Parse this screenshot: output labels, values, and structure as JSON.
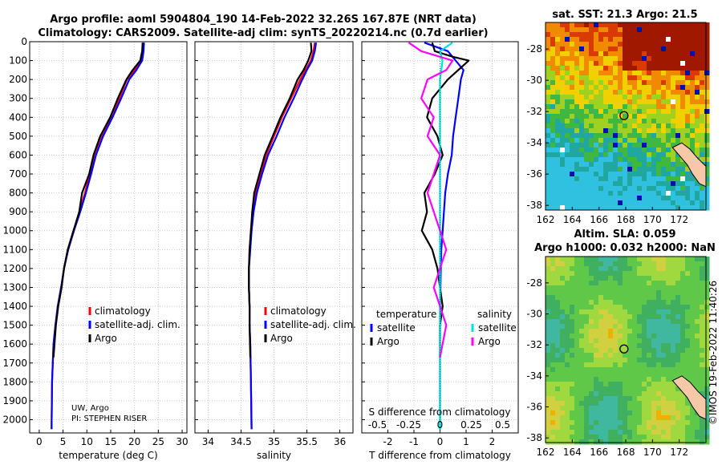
{
  "header": {
    "title_line1": "Argo profile: aoml 5904804_190 14-Feb-2022 32.26S 167.87E (NRT data)",
    "title_line2": "Climatology: CARS2009. Satellite-adj clim: synTS_20220214.nc (0.7d earlier)"
  },
  "colors": {
    "climatology": "#ff0000",
    "satellite": "#0000ff",
    "argo": "#000000",
    "satellite_salinity": "#00e0e0",
    "argo_salinity": "#ff00ff"
  },
  "annotations": {
    "credit_line1": "UW, Argo",
    "credit_line2": "PI: STEPHEN RISER",
    "imos_stamp": "©IMOS 19-Feb-2022 11:40:26"
  },
  "maps": {
    "sst": {
      "title": "sat. SST: 21.3 Argo: 21.5"
    },
    "sla": {
      "title_line1": "Altim. SLA: 0.059",
      "title_line2": "Argo h1000: 0.032 h2000: NaN"
    }
  },
  "chart_data": [
    {
      "type": "line",
      "name": "temperature-profile",
      "xlabel": "temperature (deg C)",
      "ylabel": "",
      "xlim": [
        -2,
        31
      ],
      "ylim": [
        2070,
        0
      ],
      "xticks": [
        "0",
        "5",
        "10",
        "15",
        "20",
        "25",
        "30"
      ],
      "xtick_values": [
        0,
        5,
        10,
        15,
        20,
        25,
        30
      ],
      "yticks": [
        "0",
        "100",
        "200",
        "300",
        "400",
        "500",
        "600",
        "700",
        "800",
        "900",
        "1000",
        "1100",
        "1200",
        "1300",
        "1400",
        "1500",
        "1600",
        "1700",
        "1800",
        "1900",
        "2000"
      ],
      "ytick_values": [
        0,
        100,
        200,
        300,
        400,
        500,
        600,
        700,
        800,
        900,
        1000,
        1100,
        1200,
        1300,
        1400,
        1500,
        1600,
        1700,
        1800,
        1900,
        2000
      ],
      "grid": true,
      "legend": [
        {
          "label": "climatology",
          "color": "#ff0000"
        },
        {
          "label": "satellite-adj. clim.",
          "color": "#0000ff"
        },
        {
          "label": "Argo",
          "color": "#000000"
        }
      ],
      "series": [
        {
          "name": "climatology",
          "color": "#ff0000",
          "x": [
            21.9,
            21.8,
            21.4,
            20.0,
            18.4,
            16.8,
            15.0,
            13.0,
            11.5,
            10.6,
            9.6,
            8.5,
            7.2,
            6.0,
            5.2,
            4.6,
            3.9,
            3.4,
            3.0,
            2.7,
            2.6
          ],
          "depth": [
            5,
            50,
            100,
            150,
            200,
            300,
            400,
            500,
            600,
            700,
            800,
            900,
            1000,
            1100,
            1200,
            1300,
            1400,
            1500,
            1600,
            1800,
            2050
          ]
        },
        {
          "name": "satellite-adj. clim.",
          "color": "#0000ff",
          "x": [
            22.0,
            21.9,
            21.6,
            20.4,
            18.9,
            17.2,
            15.4,
            13.4,
            11.9,
            10.9,
            9.8,
            8.6,
            7.3,
            6.1,
            5.2,
            4.6,
            3.9,
            3.4,
            3.0,
            2.7,
            2.6
          ],
          "depth": [
            5,
            50,
            100,
            150,
            200,
            300,
            400,
            500,
            600,
            700,
            800,
            900,
            1000,
            1100,
            1200,
            1300,
            1400,
            1500,
            1600,
            1800,
            2050
          ]
        },
        {
          "name": "Argo",
          "color": "#000000",
          "x": [
            21.7,
            21.6,
            21.2,
            19.6,
            18.3,
            16.5,
            14.9,
            12.8,
            11.4,
            10.5,
            9.0,
            8.4,
            7.2,
            6.0,
            5.2,
            4.7,
            4.0,
            3.5,
            3.0
          ],
          "depth": [
            5,
            50,
            100,
            150,
            200,
            300,
            400,
            500,
            600,
            700,
            800,
            900,
            1000,
            1100,
            1200,
            1300,
            1400,
            1500,
            1670
          ]
        }
      ]
    },
    {
      "type": "line",
      "name": "salinity-profile",
      "xlabel": "salinity",
      "xlim": [
        33.8,
        36.2
      ],
      "ylim": [
        2070,
        0
      ],
      "xticks": [
        "34",
        "34.5",
        "35",
        "35.5",
        "36"
      ],
      "xtick_values": [
        34,
        34.5,
        35,
        35.5,
        36
      ],
      "grid": true,
      "legend": [
        {
          "label": "climatology",
          "color": "#ff0000"
        },
        {
          "label": "satellite-adj. clim.",
          "color": "#0000ff"
        },
        {
          "label": "Argo",
          "color": "#000000"
        }
      ],
      "series": [
        {
          "name": "climatology",
          "color": "#ff0000",
          "x": [
            35.62,
            35.6,
            35.56,
            35.48,
            35.4,
            35.26,
            35.12,
            35.0,
            34.88,
            34.8,
            34.72,
            34.68,
            34.65,
            34.63,
            34.62,
            34.62,
            34.63,
            34.63,
            34.64,
            34.65,
            34.66
          ],
          "depth": [
            5,
            50,
            100,
            150,
            200,
            300,
            400,
            500,
            600,
            700,
            800,
            900,
            1000,
            1100,
            1200,
            1300,
            1400,
            1500,
            1600,
            1800,
            2050
          ]
        },
        {
          "name": "satellite-adj. clim.",
          "color": "#0000ff",
          "x": [
            35.64,
            35.62,
            35.58,
            35.5,
            35.43,
            35.3,
            35.16,
            35.04,
            34.91,
            34.82,
            34.74,
            34.69,
            34.66,
            34.64,
            34.62,
            34.62,
            34.63,
            34.63,
            34.64,
            34.65,
            34.66
          ],
          "depth": [
            5,
            50,
            100,
            150,
            200,
            300,
            400,
            500,
            600,
            700,
            800,
            900,
            1000,
            1100,
            1200,
            1300,
            1400,
            1500,
            1600,
            1800,
            2050
          ]
        },
        {
          "name": "Argo",
          "color": "#000000",
          "x": [
            35.56,
            35.57,
            35.52,
            35.45,
            35.36,
            35.24,
            35.1,
            34.98,
            34.86,
            34.78,
            34.7,
            34.67,
            34.65,
            34.63,
            34.62,
            34.62,
            34.63,
            34.63,
            34.64
          ],
          "depth": [
            5,
            50,
            100,
            150,
            200,
            300,
            400,
            500,
            600,
            700,
            800,
            900,
            1000,
            1100,
            1200,
            1300,
            1400,
            1500,
            1670
          ]
        }
      ]
    },
    {
      "type": "line",
      "name": "difference-profile",
      "xlabel": "T difference from climatology",
      "xlabel_top": "S difference from climatology",
      "xlim": [
        -3,
        3
      ],
      "ylim": [
        2070,
        0
      ],
      "xticks": [
        "-2",
        "-1",
        "0",
        "1",
        "2"
      ],
      "xtick_values": [
        -2,
        -1,
        0,
        1,
        2
      ],
      "s_ticks": [
        "-0.5",
        "-0.25",
        "0",
        "0.25",
        "0.5"
      ],
      "s_tick_values": [
        -0.5,
        -0.25,
        0,
        0.25,
        0.5
      ],
      "grid": true,
      "legend_left_title": "temperature",
      "legend_right_title": "salinity",
      "legend": [
        {
          "label": "satellite",
          "color": "#0000ff",
          "group": "temperature"
        },
        {
          "label": "Argo",
          "color": "#000000",
          "group": "temperature"
        },
        {
          "label": "satellite",
          "color": "#00e0e0",
          "group": "salinity"
        },
        {
          "label": "Argo",
          "color": "#ff00ff",
          "group": "salinity"
        }
      ],
      "series": [
        {
          "name": "T satellite",
          "color": "#0000ff",
          "x": [
            -0.6,
            0.3,
            0.6,
            0.9,
            0.8,
            0.7,
            0.6,
            0.5,
            0.45,
            0.3,
            0.2,
            0.15,
            0.1,
            0.05,
            0.03,
            0.02,
            0.0,
            0.0,
            0.0,
            0.0,
            0.0
          ],
          "depth": [
            5,
            50,
            100,
            150,
            200,
            300,
            400,
            500,
            600,
            700,
            800,
            900,
            1000,
            1100,
            1200,
            1300,
            1400,
            1500,
            1600,
            1800,
            2050
          ]
        },
        {
          "name": "T Argo",
          "color": "#000000",
          "x": [
            -0.3,
            -0.2,
            0.5,
            1.1,
            0.3,
            -0.3,
            -0.5,
            -0.1,
            0.1,
            -0.2,
            -0.6,
            -0.5,
            -0.7,
            -0.3,
            -0.1,
            0.0,
            0.1,
            0.0,
            0.0
          ],
          "depth": [
            5,
            50,
            80,
            100,
            200,
            300,
            400,
            500,
            600,
            700,
            800,
            900,
            1000,
            1100,
            1200,
            1300,
            1400,
            1500,
            1670
          ]
        },
        {
          "name": "S satellite",
          "color": "#00e0e0",
          "x": [
            0.1,
            0.0,
            0.02,
            0.01,
            0.0,
            0.0,
            0.0,
            0.0,
            0.0,
            0.0,
            0.0,
            0.0,
            0.0,
            0.0,
            0.0,
            0.0,
            0.0,
            0.0,
            0.0,
            0.0,
            0.0
          ],
          "depth": [
            5,
            50,
            100,
            150,
            200,
            300,
            400,
            500,
            600,
            700,
            800,
            900,
            1000,
            1100,
            1200,
            1300,
            1400,
            1500,
            1600,
            1800,
            2050
          ]
        },
        {
          "name": "S Argo",
          "color": "#ff00ff",
          "x": [
            -0.25,
            -0.15,
            0.1,
            0.05,
            -0.1,
            -0.15,
            -0.05,
            -0.1,
            0.0,
            -0.05,
            -0.1,
            -0.05,
            0.0,
            0.05,
            0.0,
            -0.05,
            0.0,
            0.05,
            0.0
          ],
          "depth": [
            5,
            50,
            100,
            150,
            200,
            300,
            400,
            500,
            600,
            700,
            800,
            900,
            1000,
            1100,
            1200,
            1300,
            1400,
            1500,
            1670
          ]
        }
      ]
    },
    {
      "type": "heatmap",
      "name": "sst-map",
      "title": "sat. SST: 21.3 Argo: 21.5",
      "xticks": [
        "162",
        "164",
        "166",
        "168",
        "170",
        "172"
      ],
      "xtick_values": [
        162,
        164,
        166,
        168,
        170,
        172
      ],
      "yticks": [
        "-28",
        "-30",
        "-32",
        "-34",
        "-36",
        "-38"
      ],
      "ytick_values": [
        -28,
        -30,
        -32,
        -34,
        -36,
        -38
      ],
      "xlim": [
        162,
        174
      ],
      "ylim": [
        -38.3,
        -26.3
      ],
      "argo_position": [
        167.87,
        -32.26
      ]
    },
    {
      "type": "heatmap",
      "name": "sla-map",
      "title": "Altim. SLA: 0.059",
      "xticks": [
        "162",
        "164",
        "166",
        "168",
        "170",
        "172"
      ],
      "xtick_values": [
        162,
        164,
        166,
        168,
        170,
        172
      ],
      "yticks": [
        "-28",
        "-30",
        "-32",
        "-34",
        "-36",
        "-38"
      ],
      "ytick_values": [
        -28,
        -30,
        -32,
        -34,
        -36,
        -38
      ],
      "xlim": [
        162,
        174
      ],
      "ylim": [
        -38.3,
        -26.3
      ],
      "argo_position": [
        167.87,
        -32.26
      ]
    }
  ]
}
